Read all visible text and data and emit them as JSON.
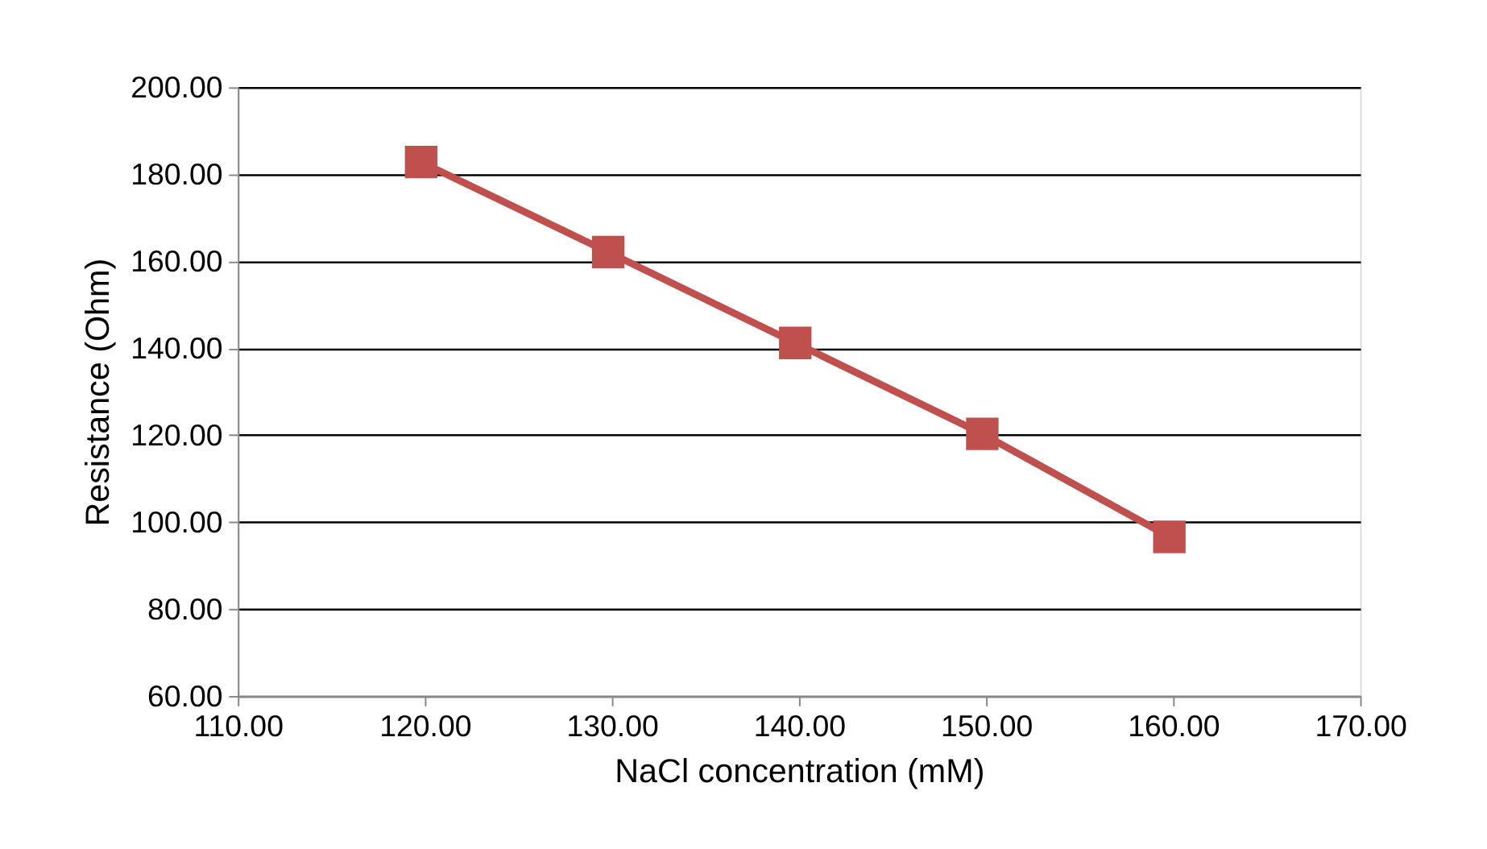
{
  "chart_data": {
    "type": "line",
    "xlabel": "NaCl concentration (mM)",
    "ylabel": "Resistance (Ohm)",
    "x": [
      119.8,
      129.8,
      139.8,
      149.8,
      159.8
    ],
    "series": [
      {
        "color": "#c0504d",
        "values": [
          182.8,
          162.1,
          141.2,
          120.3,
          96.6
        ]
      }
    ],
    "xlim": [
      110,
      170
    ],
    "xticks": [
      {
        "value": 110,
        "label": "110.00"
      },
      {
        "value": 120,
        "label": "120.00"
      },
      {
        "value": 130,
        "label": "130.00"
      },
      {
        "value": 140,
        "label": "140.00"
      },
      {
        "value": 150,
        "label": "150.00"
      },
      {
        "value": 160,
        "label": "160.00"
      },
      {
        "value": 170,
        "label": "170.00"
      }
    ],
    "ylim": [
      60,
      200
    ],
    "yticks": [
      {
        "value": 60,
        "label": "60.00"
      },
      {
        "value": 80,
        "label": "80.00"
      },
      {
        "value": 100,
        "label": "100.00"
      },
      {
        "value": 120,
        "label": "120.00"
      },
      {
        "value": 140,
        "label": "140.00"
      },
      {
        "value": 160,
        "label": "160.00"
      },
      {
        "value": 180,
        "label": "180.00"
      },
      {
        "value": 200,
        "label": "200.00"
      }
    ],
    "grid": "y",
    "marker": "square",
    "line_style": "solid"
  }
}
